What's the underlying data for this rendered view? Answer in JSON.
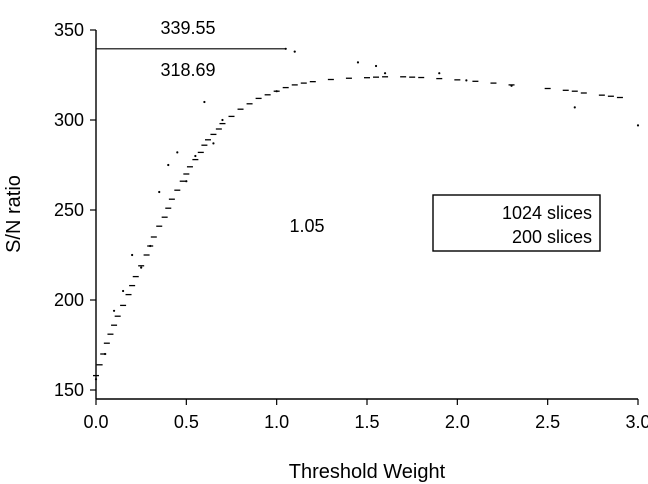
{
  "chart_data": {
    "type": "scatter",
    "title": "",
    "xlabel": "Threshold Weight",
    "ylabel": "S/N ratio",
    "xlim": [
      0,
      3
    ],
    "ylim": [
      145,
      350
    ],
    "xticks": [
      0.0,
      0.5,
      1.0,
      1.5,
      2.0,
      2.5,
      3.0
    ],
    "xtick_labels": [
      "0.0",
      "0.5",
      "1.0",
      "1.5",
      "2.0",
      "2.5",
      "3.0"
    ],
    "yticks": [
      150,
      200,
      250,
      300,
      350
    ],
    "ytick_labels": [
      "150",
      "200",
      "250",
      "300",
      "350"
    ],
    "grid": false,
    "legend_position": "center-right",
    "series": [
      {
        "name": "1024 slices",
        "style": "dashes",
        "color": "#000000",
        "x": [
          0.0,
          0.02,
          0.04,
          0.06,
          0.08,
          0.1,
          0.12,
          0.15,
          0.18,
          0.2,
          0.22,
          0.25,
          0.28,
          0.3,
          0.32,
          0.35,
          0.38,
          0.4,
          0.42,
          0.45,
          0.48,
          0.5,
          0.52,
          0.55,
          0.58,
          0.6,
          0.62,
          0.65,
          0.68,
          0.7,
          0.75,
          0.8,
          0.85,
          0.9,
          0.95,
          1.0,
          1.05,
          1.1,
          1.15,
          1.2,
          1.3,
          1.4,
          1.5,
          1.55,
          1.6,
          1.7,
          1.75,
          1.8,
          1.9,
          2.0,
          2.1,
          2.2,
          2.3,
          2.5,
          2.6,
          2.65,
          2.7,
          2.8,
          2.85,
          2.9
        ],
        "y": [
          158,
          164,
          170,
          176,
          181,
          186,
          191,
          197,
          203,
          208,
          213,
          219,
          225,
          230,
          235,
          241,
          246,
          251,
          256,
          261,
          266,
          270,
          274,
          278,
          282,
          286,
          289,
          292,
          295,
          298,
          302,
          306,
          309,
          312,
          314,
          316,
          318,
          319.5,
          320.5,
          321.3,
          322.5,
          323.2,
          323.5,
          323.8,
          324,
          324,
          323.8,
          323.6,
          323,
          322.3,
          321.5,
          320.5,
          319.5,
          317.5,
          316.5,
          316,
          315,
          313.8,
          313.2,
          312.5
        ]
      },
      {
        "name": "200 slices",
        "style": "dots",
        "color": "#000000",
        "x": [
          0.0,
          0.05,
          0.1,
          0.15,
          0.2,
          0.25,
          0.3,
          0.35,
          0.4,
          0.45,
          0.5,
          0.55,
          0.6,
          0.65,
          0.7,
          1.0,
          1.05,
          1.1,
          1.45,
          1.55,
          1.6,
          1.9,
          2.05,
          2.3,
          2.65,
          3.0
        ],
        "y": [
          156,
          170,
          194,
          205,
          225,
          218,
          230,
          260,
          275,
          282,
          266,
          280,
          310,
          287,
          300,
          316,
          339.55,
          338,
          332,
          330,
          326,
          326,
          322,
          319,
          307,
          297
        ]
      }
    ],
    "reference_line": {
      "x": [
        0.0,
        1.05
      ],
      "y": 339.55
    },
    "annotations": [
      "339.55",
      "318.69",
      "1.05"
    ],
    "legend_entries": [
      "1024 slices",
      "200 slices"
    ]
  }
}
